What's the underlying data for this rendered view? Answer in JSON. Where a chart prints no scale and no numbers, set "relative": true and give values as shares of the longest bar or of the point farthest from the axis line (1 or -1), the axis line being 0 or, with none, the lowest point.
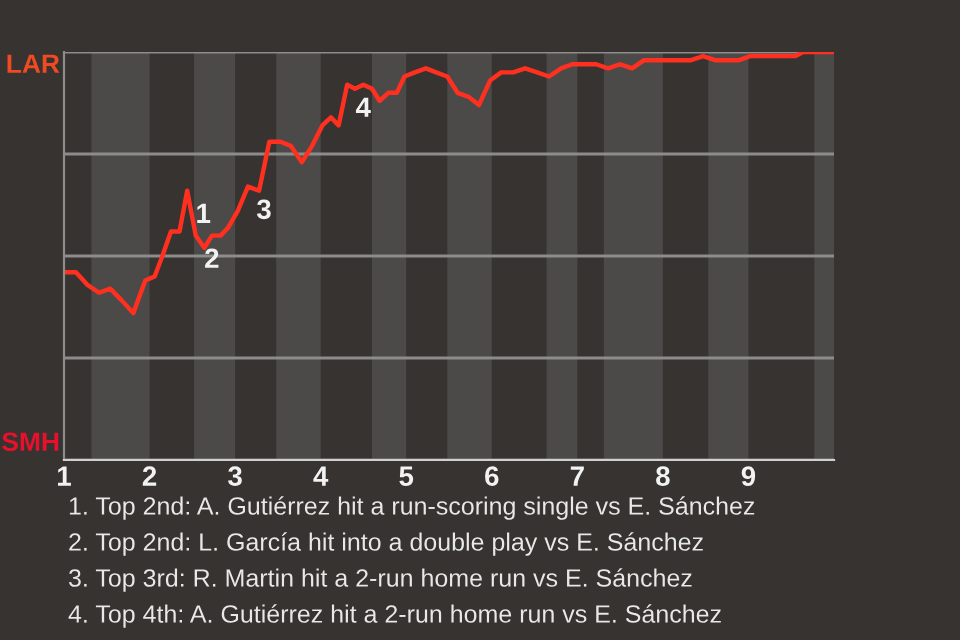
{
  "chart_data": {
    "type": "line",
    "relative": true,
    "x": [
      1.0,
      1.14,
      1.27,
      1.41,
      1.54,
      1.68,
      1.81,
      1.95,
      2.06,
      2.15,
      2.25,
      2.35,
      2.44,
      2.54,
      2.64,
      2.73,
      2.83,
      2.92,
      3.03,
      3.15,
      3.28,
      3.4,
      3.53,
      3.65,
      3.78,
      3.9,
      4.02,
      4.12,
      4.21,
      4.31,
      4.4,
      4.5,
      4.6,
      4.69,
      4.79,
      4.89,
      4.98,
      5.1,
      5.23,
      5.35,
      5.48,
      5.6,
      5.73,
      5.85,
      5.98,
      6.11,
      6.25,
      6.39,
      6.53,
      6.67,
      6.81,
      6.94,
      7.08,
      7.22,
      7.36,
      7.5,
      7.64,
      7.78,
      7.92,
      8.06,
      8.19,
      8.33,
      8.47,
      8.61,
      8.75,
      8.89,
      9.02,
      9.11,
      9.2,
      9.29,
      9.38,
      9.46,
      9.55,
      9.64,
      9.73,
      9.82,
      9.91,
      10.0
    ],
    "series": [
      {
        "color": "#ff3020",
        "values": [
          0.46,
          0.46,
          0.43,
          0.41,
          0.42,
          0.39,
          0.36,
          0.44,
          0.45,
          0.5,
          0.56,
          0.56,
          0.66,
          0.55,
          0.52,
          0.55,
          0.55,
          0.57,
          0.61,
          0.67,
          0.66,
          0.78,
          0.78,
          0.77,
          0.73,
          0.77,
          0.82,
          0.84,
          0.82,
          0.92,
          0.91,
          0.92,
          0.91,
          0.88,
          0.9,
          0.9,
          0.94,
          0.95,
          0.96,
          0.95,
          0.94,
          0.9,
          0.89,
          0.87,
          0.93,
          0.95,
          0.95,
          0.96,
          0.95,
          0.94,
          0.96,
          0.97,
          0.97,
          0.97,
          0.96,
          0.97,
          0.96,
          0.98,
          0.98,
          0.98,
          0.98,
          0.98,
          0.99,
          0.98,
          0.98,
          0.98,
          0.99,
          0.99,
          0.99,
          0.99,
          0.99,
          0.99,
          0.99,
          1,
          1,
          1,
          1,
          1
        ]
      }
    ],
    "xlim": [
      1,
      10
    ],
    "xticks": [
      1,
      2,
      3,
      4,
      5,
      6,
      7,
      8,
      9
    ],
    "grid": "y",
    "bands": [
      {
        "axis": "x",
        "from": 1.32,
        "to": 2,
        "color": "#4b4a48"
      },
      {
        "axis": "x",
        "from": 2.52,
        "to": 3,
        "color": "#4b4a48"
      },
      {
        "axis": "x",
        "from": 3.48,
        "to": 4,
        "color": "#4b4a48"
      },
      {
        "axis": "x",
        "from": 4.6,
        "to": 5,
        "color": "#4b4a48"
      },
      {
        "axis": "x",
        "from": 5.48,
        "to": 6,
        "color": "#4b4a48"
      },
      {
        "axis": "x",
        "from": 6.64,
        "to": 7,
        "color": "#4b4a48"
      },
      {
        "axis": "x",
        "from": 7.31,
        "to": 8,
        "color": "#4b4a48"
      },
      {
        "axis": "x",
        "from": 8.53,
        "to": 9,
        "color": "#4b4a48"
      },
      {
        "axis": "x",
        "from": 9.77,
        "to": 10,
        "color": "#4b4a48"
      }
    ],
    "annotations": [
      "LAR",
      "SMH",
      {
        "text": "1",
        "x": 2.44,
        "y": 0.66
      },
      {
        "text": "2",
        "x": 2.54,
        "y": 0.55
      },
      {
        "text": "3",
        "x": 3.15,
        "y": 0.67
      },
      {
        "text": "4",
        "x": 4.31,
        "y": 0.92
      },
      "1. Top 2nd: A. Gutiérrez hit a run-scoring single vs E. Sánchez",
      "2. Top 2nd: L. García hit into a double play vs E. Sánchez",
      "3. Top 3rd: R. Martin hit a 2-run home run vs E. Sánchez",
      "4. Top 4th: A. Gutiérrez hit a 2-run home run vs E. Sánchez"
    ]
  }
}
